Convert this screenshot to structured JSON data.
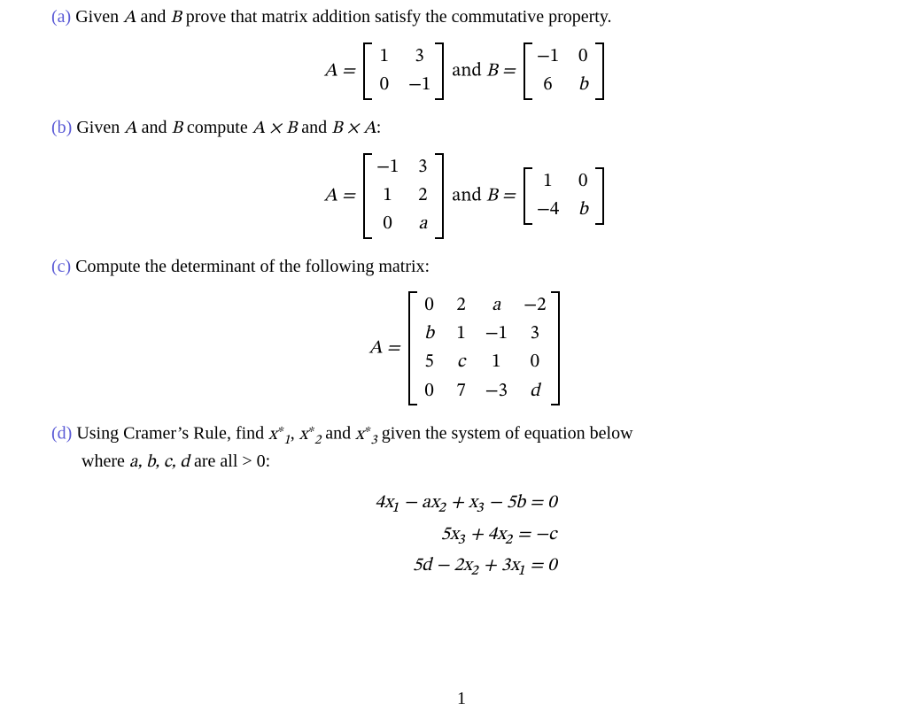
{
  "colors": {
    "label": "#5b5bd6",
    "text": "#000000",
    "bg": "#ffffff"
  },
  "page_number": "1",
  "a": {
    "label": "(a)",
    "text_before": " Given ",
    "var_A": "A",
    "text_mid1": " and ",
    "var_B": "B",
    "text_after": " prove that matrix addition satisfy the commutative property.",
    "eq": {
      "A_eq": "A =",
      "and": " and ",
      "B_eq": "B =",
      "A": {
        "rows": 2,
        "cols": 2,
        "cells": [
          "1",
          "3",
          "0",
          "−1"
        ]
      },
      "B": {
        "rows": 2,
        "cols": 2,
        "cells": [
          "−1",
          "0",
          "6",
          "b"
        ]
      }
    }
  },
  "b": {
    "label": "(b)",
    "text_before": " Given ",
    "var_A": "A",
    "text_mid1": " and ",
    "var_B": "B",
    "text_mid2": " compute ",
    "AxB": "A × B",
    "text_mid3": " and ",
    "BxA": "B × A",
    "colon": ":",
    "eq": {
      "A_eq": "A =",
      "and": " and ",
      "B_eq": "B =",
      "A": {
        "rows": 3,
        "cols": 2,
        "cells": [
          "−1",
          "3",
          "1",
          "2",
          "0",
          "a"
        ]
      },
      "B": {
        "rows": 2,
        "cols": 2,
        "cells": [
          "1",
          "0",
          "−4",
          "b"
        ]
      }
    }
  },
  "c": {
    "label": "(c)",
    "text": " Compute the determinant of the following matrix:",
    "eq": {
      "A_eq": "A =",
      "A": {
        "rows": 4,
        "cols": 4,
        "cells": [
          "0",
          "2",
          "a",
          "−2",
          "b",
          "1",
          "−1",
          "3",
          "5",
          "c",
          "1",
          "0",
          "0",
          "7",
          "−3",
          "d"
        ]
      }
    }
  },
  "d": {
    "label": "(d)",
    "line1_before": " Using Cramer’s Rule, find ",
    "x1": "x",
    "x1_sub": "1",
    "x1_sup": "∗",
    "comma1": ", ",
    "x2": "x",
    "x2_sub": "2",
    "x2_sup": "∗",
    "and_word": " and ",
    "x3": "x",
    "x3_sub": "3",
    "x3_sup": "∗",
    "line1_after": " given the system of equation below",
    "line2_before": "where ",
    "abcd": "a, b, c, d",
    "line2_after": " are all > 0:",
    "sys": {
      "eq1": "4x₁ − ax₂ + x₃ − 5b = 0",
      "eq2": "5x₃ + 4x₂ = −c",
      "eq3": "5d − 2x₂ + 3x₁ = 0"
    }
  }
}
